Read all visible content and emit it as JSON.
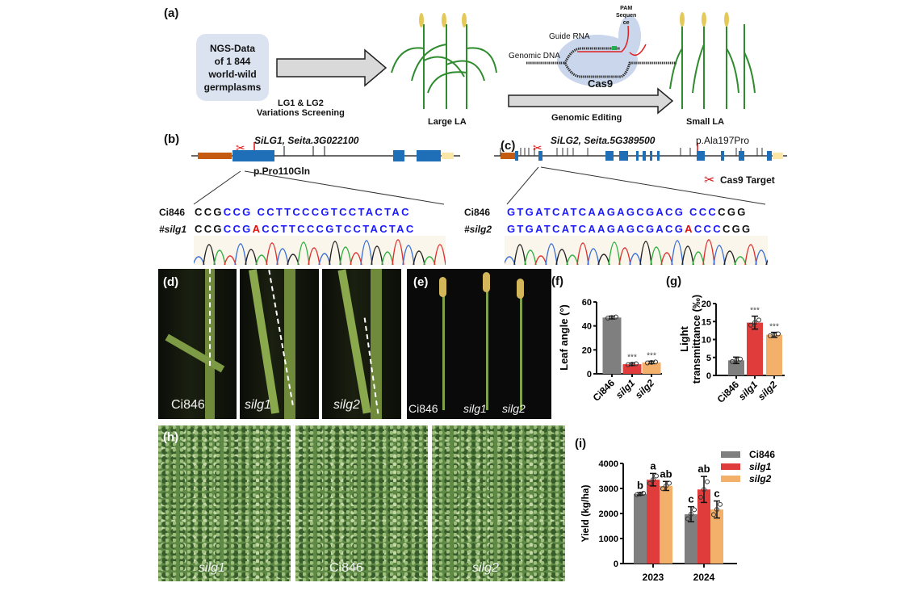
{
  "panels": {
    "a": "(a)",
    "b": "(b)",
    "c": "(c)",
    "d": "(d)",
    "e": "(e)",
    "f": "(f)",
    "g": "(g)",
    "h": "(h)",
    "i": "(i)"
  },
  "a": {
    "ngs_box": [
      "NGS-Data",
      "of 1 844",
      "world-wild",
      "germplasms"
    ],
    "screen_label": [
      "LG1 & LG2",
      "Variations Screening"
    ],
    "large_la": "Large LA",
    "small_la": "Small LA",
    "editing": "Genomic Editing",
    "pam": [
      "PAM",
      "Sequen",
      "ce"
    ],
    "guide_rna": "Guide RNA",
    "genomic_dna": "Genomic DNA",
    "cas9": "Cas9"
  },
  "b": {
    "gene": "SiLG1,",
    "gene_id": "Seita.3G022100",
    "mutation": "p.Pro110Gln",
    "ref_label": "Ci846",
    "mut_label": "#silg1",
    "ref_seq": [
      [
        "CCG",
        "k"
      ],
      [
        "CCG ",
        "b"
      ],
      [
        "CCTTCCCGTCCTACTAC",
        "b"
      ]
    ],
    "mut_seq": [
      [
        "CCG",
        "k"
      ],
      [
        "CCG",
        "b"
      ],
      [
        "A",
        "r"
      ],
      [
        "CCTTCCCGTCCTACTAC",
        "b"
      ]
    ]
  },
  "c": {
    "gene": "SiLG2,",
    "gene_id": "Seita.5G389500",
    "mutation": "p.Ala197Pro",
    "legend": "Cas9  Target",
    "ref_label": "Ci846",
    "mut_label": "#silg2",
    "ref_seq": [
      [
        "GTGATCATCAAGAGCGACG CCC",
        "b"
      ],
      [
        "CGG",
        "k"
      ]
    ],
    "mut_seq": [
      [
        "GTGATCATCAAGAGCGACG",
        "b"
      ],
      [
        "A",
        "r"
      ],
      [
        "CCC",
        "b"
      ],
      [
        "CGG",
        "k"
      ]
    ]
  },
  "d": {
    "labels": [
      "Ci846",
      "silg1",
      "silg2"
    ]
  },
  "e": {
    "labels": [
      "Ci846",
      "silg1",
      "silg2"
    ]
  },
  "h": {
    "labels": [
      "silg1",
      "Ci846",
      "silg2"
    ]
  },
  "colors": {
    "ci846": "#7f7f7f",
    "silg1": "#e03c3c",
    "silg2": "#f2b06a",
    "exon": "#1f6fb8",
    "utr5": "#c55a11",
    "utr3": "#fde7a6"
  },
  "chart_data": [
    {
      "id": "f",
      "type": "bar",
      "categories": [
        "Ci846",
        "silg1",
        "silg2"
      ],
      "values": [
        47,
        8,
        9.5
      ],
      "errors": [
        1.2,
        1,
        1
      ],
      "annotations": [
        "",
        "***",
        "***"
      ],
      "ylabel": "Leaf angle (°)",
      "ylim": [
        0,
        60
      ],
      "yticks": [
        0,
        20,
        40,
        60
      ]
    },
    {
      "id": "g",
      "type": "bar",
      "categories": [
        "Ci846",
        "silg1",
        "silg2"
      ],
      "values": [
        4.2,
        14.7,
        11.3
      ],
      "errors": [
        0.9,
        1.8,
        0.7
      ],
      "annotations": [
        "",
        "***",
        "***"
      ],
      "ylabel": [
        "Light",
        "transmittance (‰)"
      ],
      "ylim": [
        0,
        20
      ],
      "yticks": [
        0,
        5,
        10,
        15,
        20
      ]
    },
    {
      "id": "i",
      "type": "bar",
      "categories": [
        "2023",
        "2024"
      ],
      "series": [
        {
          "name": "Ci846",
          "values": [
            2780,
            1970
          ],
          "errors": [
            50,
            300
          ],
          "letters": [
            "b",
            "c"
          ]
        },
        {
          "name": "silg1",
          "values": [
            3350,
            2960
          ],
          "errors": [
            250,
            520
          ],
          "letters": [
            "a",
            "ab"
          ]
        },
        {
          "name": "silg2",
          "values": [
            3100,
            2160
          ],
          "errors": [
            180,
            340
          ],
          "letters": [
            "ab",
            "c"
          ]
        }
      ],
      "ylabel": "Yield (kg/ha)",
      "ylim": [
        0,
        4000
      ],
      "yticks": [
        0,
        1000,
        2000,
        3000,
        4000
      ],
      "legend": "top-right"
    }
  ]
}
